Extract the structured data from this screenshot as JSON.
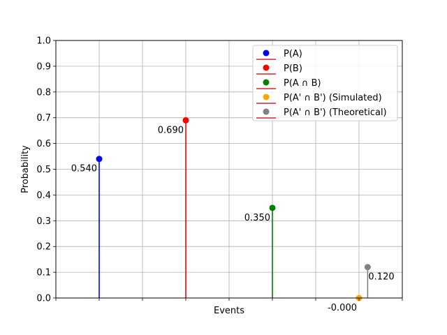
{
  "chart_data": {
    "type": "stem",
    "title": "",
    "xlabel": "Events",
    "ylabel": "Probability",
    "ylim": [
      0,
      1.0
    ],
    "xlim": [
      0,
      4
    ],
    "grid": true,
    "legend_position": "top-right",
    "yticks": [
      "0.0",
      "0.1",
      "0.2",
      "0.3",
      "0.4",
      "0.5",
      "0.6",
      "0.7",
      "0.8",
      "0.9",
      "1.0"
    ],
    "series": [
      {
        "name": "P(A)",
        "x": 0.5,
        "value": 0.54,
        "label": "0.540",
        "label_side": "left",
        "color": "#0000ff"
      },
      {
        "name": "P(B)",
        "x": 1.5,
        "value": 0.69,
        "label": "0.690",
        "label_side": "left",
        "color": "#ff0000"
      },
      {
        "name": "P(A ∩ B)",
        "x": 2.5,
        "value": 0.35,
        "label": "0.350",
        "label_side": "left",
        "color": "#008000"
      },
      {
        "name": "P(A' ∩ B') (Simulated)",
        "x": 3.5,
        "value": 0.0,
        "label": "-0.000",
        "label_side": "left",
        "color": "#ffa500"
      },
      {
        "name": "P(A' ∩ B') (Theoretical)",
        "x": 3.6,
        "value": 0.12,
        "label": "0.120",
        "label_side": "right",
        "color": "#808080"
      }
    ],
    "baseline_color": "#d62728"
  }
}
